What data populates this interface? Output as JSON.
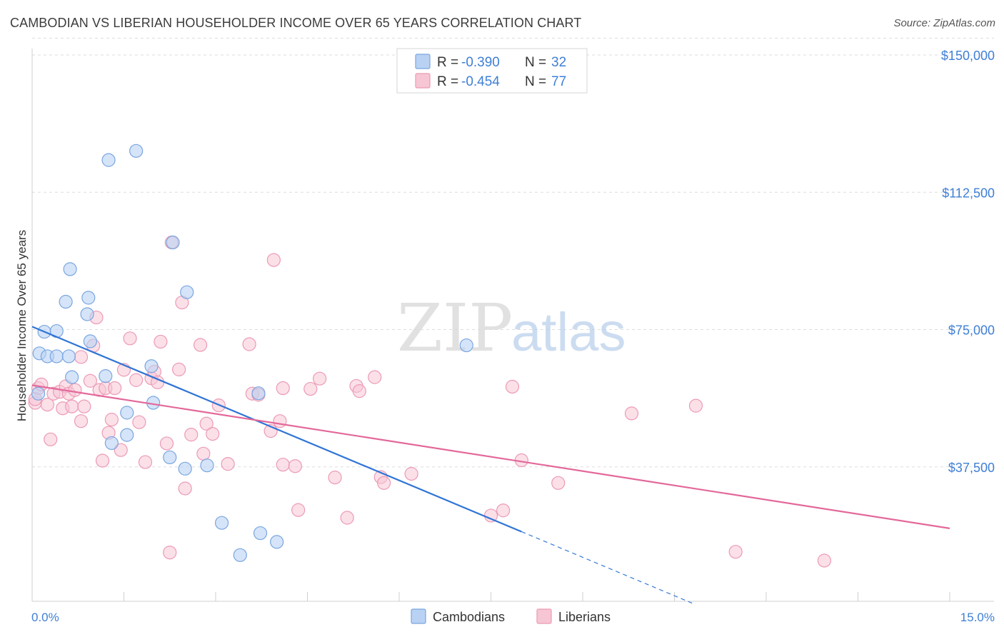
{
  "title": "CAMBODIAN VS LIBERIAN HOUSEHOLDER INCOME OVER 65 YEARS CORRELATION CHART",
  "source": "Source: ZipAtlas.com",
  "watermark": {
    "zip": "ZIP",
    "atlas": "atlas"
  },
  "colors": {
    "blue_fill": "#b9d2f3",
    "blue_stroke": "#7aa6e0",
    "blue_line": "#2f74d6",
    "pink_fill": "#f7c6d5",
    "pink_stroke": "#ec9ab5",
    "pink_line": "#e3689a",
    "grid": "#dddddd",
    "tick_label": "#3f7fd6"
  },
  "legend": {
    "rows": [
      {
        "r_label": "R = ",
        "r_value": "-0.390",
        "n_label": "N = ",
        "n_value": "32"
      },
      {
        "r_label": "R = ",
        "r_value": "-0.454",
        "n_label": "N = ",
        "n_value": "77"
      }
    ]
  },
  "bottom_legend": [
    "Cambodians",
    "Liberians"
  ],
  "chart_data": {
    "type": "scatter",
    "title": "CAMBODIAN VS LIBERIAN HOUSEHOLDER INCOME OVER 65 YEARS CORRELATION CHART",
    "xlabel": "",
    "ylabel": "Householder Income Over 65 years",
    "xlim": [
      0,
      15
    ],
    "ylim": [
      0,
      155000
    ],
    "x_tick_labels": [
      "0.0%",
      "15.0%"
    ],
    "y_ticks": [
      37500,
      75000,
      112500,
      150000
    ],
    "y_tick_labels": [
      "$37,500",
      "$75,000",
      "$112,500",
      "$150,000"
    ],
    "series": [
      {
        "name": "Cambodians",
        "r": -0.39,
        "n": 32,
        "trend": {
          "x0": 0,
          "y0": 75800,
          "x1": 8.0,
          "y1": 19800,
          "dash_to_x": 10.8
        },
        "points": [
          [
            0.1,
            57500
          ],
          [
            0.12,
            68500
          ],
          [
            0.25,
            67700
          ],
          [
            0.2,
            74400
          ],
          [
            0.4,
            74600
          ],
          [
            0.4,
            67700
          ],
          [
            0.6,
            67700
          ],
          [
            0.55,
            82600
          ],
          [
            0.65,
            62000
          ],
          [
            0.95,
            71800
          ],
          [
            0.9,
            79200
          ],
          [
            0.62,
            91500
          ],
          [
            0.92,
            83700
          ],
          [
            1.2,
            62300
          ],
          [
            1.3,
            44000
          ],
          [
            1.55,
            52300
          ],
          [
            1.55,
            46200
          ],
          [
            1.7,
            123800
          ],
          [
            1.25,
            121300
          ],
          [
            1.95,
            65000
          ],
          [
            1.98,
            55000
          ],
          [
            2.25,
            40100
          ],
          [
            2.3,
            98800
          ],
          [
            2.5,
            37000
          ],
          [
            2.53,
            85200
          ],
          [
            2.86,
            37900
          ],
          [
            3.1,
            22200
          ],
          [
            3.4,
            13400
          ],
          [
            3.7,
            57600
          ],
          [
            3.73,
            19400
          ],
          [
            4.0,
            17000
          ],
          [
            7.1,
            70700
          ]
        ]
      },
      {
        "name": "Liberians",
        "r": -0.454,
        "n": 77,
        "trend": {
          "x0": 0,
          "y0": 59800,
          "x1": 15,
          "y1": 20700
        },
        "points": [
          [
            0.05,
            55000
          ],
          [
            0.1,
            59000
          ],
          [
            0.15,
            60000
          ],
          [
            0.25,
            54500
          ],
          [
            0.3,
            45000
          ],
          [
            0.35,
            57500
          ],
          [
            0.45,
            58000
          ],
          [
            0.5,
            53500
          ],
          [
            0.55,
            59500
          ],
          [
            0.6,
            57500
          ],
          [
            0.65,
            54000
          ],
          [
            0.7,
            58500
          ],
          [
            0.8,
            50000
          ],
          [
            0.8,
            67500
          ],
          [
            0.85,
            54000
          ],
          [
            0.95,
            61000
          ],
          [
            1.0,
            70600
          ],
          [
            1.05,
            78300
          ],
          [
            1.1,
            58500
          ],
          [
            1.15,
            39200
          ],
          [
            1.2,
            59000
          ],
          [
            1.25,
            46800
          ],
          [
            1.3,
            50400
          ],
          [
            1.35,
            59000
          ],
          [
            1.45,
            42100
          ],
          [
            1.5,
            64000
          ],
          [
            1.6,
            72600
          ],
          [
            1.7,
            61200
          ],
          [
            1.75,
            49700
          ],
          [
            1.85,
            38800
          ],
          [
            1.95,
            61700
          ],
          [
            2.0,
            63500
          ],
          [
            2.05,
            60600
          ],
          [
            2.1,
            71700
          ],
          [
            2.2,
            43900
          ],
          [
            2.25,
            14100
          ],
          [
            2.28,
            98800
          ],
          [
            2.4,
            64100
          ],
          [
            2.45,
            82400
          ],
          [
            2.5,
            31600
          ],
          [
            2.6,
            46300
          ],
          [
            2.75,
            70800
          ],
          [
            2.8,
            41100
          ],
          [
            2.85,
            49300
          ],
          [
            2.95,
            46500
          ],
          [
            3.05,
            54300
          ],
          [
            3.2,
            38300
          ],
          [
            3.55,
            71000
          ],
          [
            3.6,
            57500
          ],
          [
            3.7,
            57200
          ],
          [
            3.9,
            47300
          ],
          [
            3.95,
            94000
          ],
          [
            4.05,
            50000
          ],
          [
            4.1,
            38100
          ],
          [
            4.1,
            59000
          ],
          [
            4.3,
            37700
          ],
          [
            4.35,
            25700
          ],
          [
            4.55,
            58800
          ],
          [
            4.7,
            61600
          ],
          [
            4.95,
            34600
          ],
          [
            5.15,
            23600
          ],
          [
            5.3,
            59600
          ],
          [
            5.35,
            58200
          ],
          [
            5.6,
            62000
          ],
          [
            5.7,
            34700
          ],
          [
            5.75,
            33100
          ],
          [
            6.2,
            35600
          ],
          [
            7.5,
            24200
          ],
          [
            7.7,
            25600
          ],
          [
            7.85,
            59400
          ],
          [
            8.0,
            39300
          ],
          [
            8.6,
            33100
          ],
          [
            9.8,
            52100
          ],
          [
            10.85,
            54200
          ],
          [
            11.5,
            14300
          ],
          [
            12.95,
            11900
          ],
          [
            0.05,
            56000
          ]
        ]
      }
    ]
  }
}
